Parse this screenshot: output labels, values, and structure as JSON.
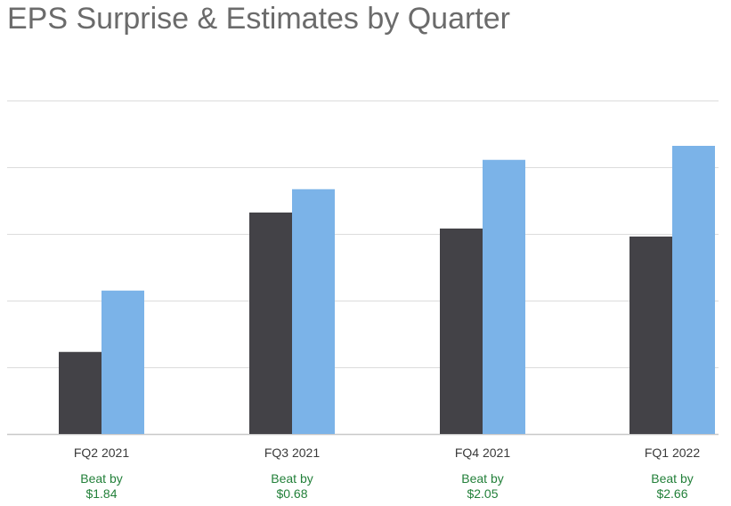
{
  "title": "EPS Surprise & Estimates by Quarter",
  "colors": {
    "actual": "#434247",
    "estimate": "#7bb3e8",
    "beat_text": "#23803a",
    "gridline": "#dcdcdc",
    "axis": "#c8c8c8",
    "title": "#6b6b6b"
  },
  "chart_data": {
    "type": "bar",
    "title": "EPS Surprise & Estimates by Quarter",
    "categories": [
      "FQ2 2021",
      "FQ3 2021",
      "FQ4 2021",
      "FQ1 2022"
    ],
    "series": [
      {
        "values": [
          1.23,
          3.32,
          3.08,
          2.96
        ],
        "color": "#434247"
      },
      {
        "values": [
          2.15,
          3.67,
          4.11,
          4.32
        ],
        "color": "#7bb3e8"
      }
    ],
    "ylim": [
      0,
      5
    ],
    "yticks_labeled": false,
    "grid": true,
    "legend": "none",
    "annotations": [
      {
        "line1": "Beat by",
        "line2": "$1.84"
      },
      {
        "line1": "Beat by",
        "line2": "$0.68"
      },
      {
        "line1": "Beat by",
        "line2": "$2.05"
      },
      {
        "line1": "Beat by",
        "line2": "$2.66"
      }
    ]
  }
}
